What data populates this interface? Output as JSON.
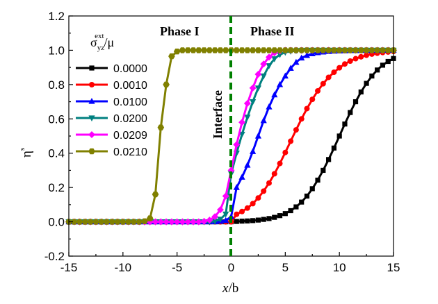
{
  "chart_data": {
    "type": "line",
    "xlabel_italic": "x",
    "xlabel_rest": "/b",
    "ylabel_main": "η",
    "ylabel_sup": "s",
    "xlim": [
      -15,
      15
    ],
    "ylim": [
      -0.2,
      1.2
    ],
    "xticks": [
      -15,
      -10,
      -5,
      0,
      5,
      10,
      15
    ],
    "yticks": [
      -0.2,
      0.0,
      0.2,
      0.4,
      0.6,
      0.8,
      1.0,
      1.2
    ],
    "ytick_labels": [
      "-0.2",
      "0.0",
      "0.2",
      "0.4",
      "0.6",
      "0.8",
      "1.0",
      "1.2"
    ],
    "legend_title_main": "σ",
    "legend_title_sub": "yz",
    "legend_title_sup": "ext",
    "legend_title_rest": "/μ",
    "annotations": {
      "phase1": "Phase I",
      "phase2": "Phase II",
      "interface": "Interface"
    },
    "interface_x": 0,
    "x_step": 0.5,
    "series": [
      {
        "name": "0.0000",
        "color": "#000000",
        "marker": "square",
        "values": [
          0,
          0,
          0,
          0,
          0,
          0,
          0,
          0,
          0,
          0,
          0,
          0,
          0,
          0,
          0,
          0,
          0,
          0,
          0,
          0,
          0,
          0,
          0,
          0,
          0,
          0,
          0,
          0,
          0,
          0,
          0,
          0.002,
          0.004,
          0.005,
          0.007,
          0.01,
          0.014,
          0.019,
          0.026,
          0.036,
          0.048,
          0.065,
          0.087,
          0.115,
          0.15,
          0.193,
          0.243,
          0.3,
          0.363,
          0.43,
          0.5,
          0.57,
          0.637,
          0.7,
          0.757,
          0.807,
          0.85,
          0.885,
          0.913,
          0.935,
          0.952
        ]
      },
      {
        "name": "0.0010",
        "color": "#ff0000",
        "marker": "circle",
        "values": [
          0,
          0,
          0,
          0,
          0,
          0,
          0,
          0,
          0,
          0,
          0,
          0,
          0,
          0,
          0,
          0,
          0,
          0,
          0,
          0,
          0,
          0,
          0,
          0,
          0,
          0,
          0,
          0,
          0,
          0,
          0,
          0.044,
          0.06,
          0.08,
          0.106,
          0.139,
          0.179,
          0.226,
          0.28,
          0.34,
          0.404,
          0.47,
          0.536,
          0.6,
          0.66,
          0.714,
          0.763,
          0.805,
          0.842,
          0.872,
          0.898,
          0.92,
          0.937,
          0.951,
          0.962,
          0.971,
          0.978,
          0.983,
          0.987,
          0.99,
          0.993
        ]
      },
      {
        "name": "0.0100",
        "color": "#0000ff",
        "marker": "triangle",
        "values": [
          0,
          0,
          0,
          0,
          0,
          0,
          0,
          0,
          0,
          0,
          0,
          0,
          0,
          0,
          0,
          0,
          0,
          0,
          0,
          0,
          0,
          0,
          0,
          0,
          0,
          0,
          0,
          0,
          0.003,
          0.008,
          0.03,
          0.2,
          0.26,
          0.33,
          0.41,
          0.5,
          0.59,
          0.67,
          0.74,
          0.8,
          0.85,
          0.895,
          0.93,
          0.955,
          0.97,
          0.98,
          0.986,
          0.99,
          0.993,
          0.995,
          0.996,
          0.997,
          0.998,
          0.998,
          0.999,
          0.999,
          0.999,
          1,
          1,
          1,
          1
        ]
      },
      {
        "name": "0.0200",
        "color": "#008080",
        "marker": "invtriangle",
        "values": [
          0,
          0,
          0,
          0,
          0,
          0,
          0,
          0,
          0,
          0,
          0,
          0,
          0,
          0,
          0,
          0,
          0,
          0,
          0,
          0,
          0,
          0,
          0,
          0,
          0,
          0,
          0,
          0.004,
          0.015,
          0.045,
          0.28,
          0.4,
          0.51,
          0.61,
          0.7,
          0.78,
          0.85,
          0.91,
          0.95,
          0.975,
          0.988,
          0.994,
          0.997,
          0.999,
          1,
          1,
          1,
          1,
          1,
          1,
          1,
          1,
          1,
          1,
          1,
          1,
          1,
          1,
          1,
          1,
          1
        ]
      },
      {
        "name": "0.0209",
        "color": "#ff00ff",
        "marker": "diamond",
        "values": [
          0,
          0,
          0,
          0,
          0,
          0,
          0,
          0,
          0,
          0,
          0,
          0,
          0,
          0,
          0,
          0,
          0,
          0,
          0,
          0,
          0,
          0,
          0,
          0,
          0,
          0.003,
          0.01,
          0.03,
          0.07,
          0.15,
          0.3,
          0.45,
          0.58,
          0.69,
          0.78,
          0.86,
          0.92,
          0.96,
          0.985,
          0.995,
          1,
          1,
          1,
          1,
          1,
          1,
          1,
          1,
          1,
          1,
          1,
          1,
          1,
          1,
          1,
          1,
          1,
          1,
          1,
          1,
          1
        ]
      },
      {
        "name": "0.0210",
        "color": "#808000",
        "marker": "hexagon",
        "values": [
          0,
          0,
          0,
          0,
          0,
          0,
          0,
          0,
          0,
          0,
          0,
          0,
          0,
          0,
          0.003,
          0.02,
          0.16,
          0.55,
          0.8,
          0.965,
          0.993,
          1,
          1,
          1,
          1,
          1,
          1,
          1,
          1,
          1,
          1,
          1,
          1,
          1,
          1,
          1,
          1,
          1,
          1,
          1,
          1,
          1,
          1,
          1,
          1,
          1,
          1,
          1,
          1,
          1,
          1,
          1,
          1,
          1,
          1,
          1,
          1,
          1,
          1,
          1,
          1
        ]
      }
    ]
  }
}
